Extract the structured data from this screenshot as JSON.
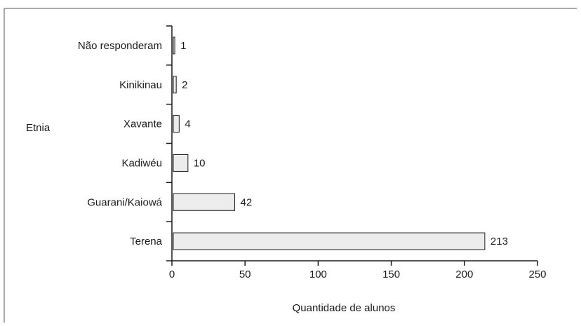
{
  "chart_data": {
    "type": "bar",
    "orientation": "horizontal",
    "categories": [
      "Não responderam",
      "Kinikinau",
      "Xavante",
      "Kadiwéu",
      "Guarani/Kaiowá",
      "Terena"
    ],
    "values": [
      1,
      2,
      4,
      10,
      42,
      213
    ],
    "xlabel": "Quantidade de alunos",
    "ylabel": "Etnia",
    "xlim": [
      0,
      250
    ],
    "xticks": [
      "0",
      "50",
      "100",
      "150",
      "200",
      "250"
    ],
    "grid": false,
    "legend": "none",
    "colors": {
      "bar_fill": "#ececec",
      "bar_stroke": "#1a1a1a",
      "axis": "#1a1a1a",
      "frame": "#555555"
    }
  }
}
